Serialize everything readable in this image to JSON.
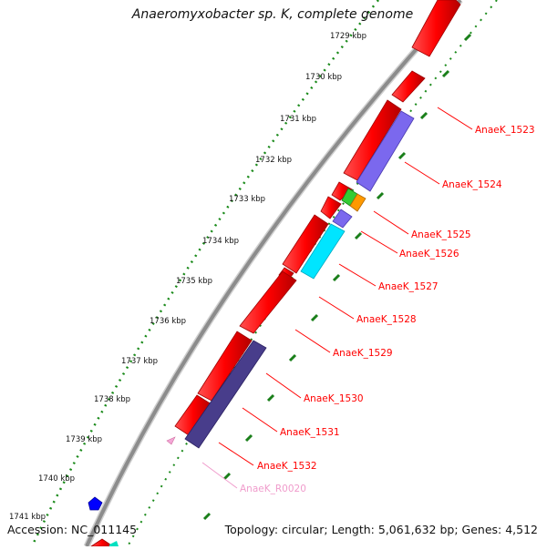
{
  "title": "Anaeromyxobacter sp. K, complete genome",
  "accession": "Accession: NC_011145",
  "topology": "Topology: circular; Length: 5,061,632 bp; Genes: 4,512",
  "colors": {
    "backbone": "#8c8c8c",
    "forward_gene": "#ff0000",
    "reverse_gene": "#6a5acd",
    "dark_gene": "#483d8b",
    "rna": "#00e5ff",
    "green_gene": "#33cc33",
    "orange_gene": "#ff9900",
    "pseudo": "#f4a6d7",
    "tick_major": "#1a7f1a",
    "label_red": "#ff0000",
    "label_pink": "#f09ccc"
  },
  "kbp_ticks": [
    "1729 kbp",
    "1730 kbp",
    "1731 kbp",
    "1732 kbp",
    "1733 kbp",
    "1734 kbp",
    "1735 kbp",
    "1736 kbp",
    "1737 kbp",
    "1738 kbp",
    "1739 kbp",
    "1740 kbp",
    "1741 kbp"
  ],
  "gene_labels": [
    {
      "text": "AnaeK_1523",
      "kind": "red"
    },
    {
      "text": "AnaeK_1524",
      "kind": "red"
    },
    {
      "text": "AnaeK_1525",
      "kind": "red"
    },
    {
      "text": "AnaeK_1526",
      "kind": "red"
    },
    {
      "text": "AnaeK_1527",
      "kind": "red"
    },
    {
      "text": "AnaeK_1528",
      "kind": "red"
    },
    {
      "text": "AnaeK_1529",
      "kind": "red"
    },
    {
      "text": "AnaeK_1530",
      "kind": "red"
    },
    {
      "text": "AnaeK_1531",
      "kind": "red"
    },
    {
      "text": "AnaeK_1532",
      "kind": "red"
    },
    {
      "text": "AnaeK_R0020",
      "kind": "pink"
    }
  ]
}
